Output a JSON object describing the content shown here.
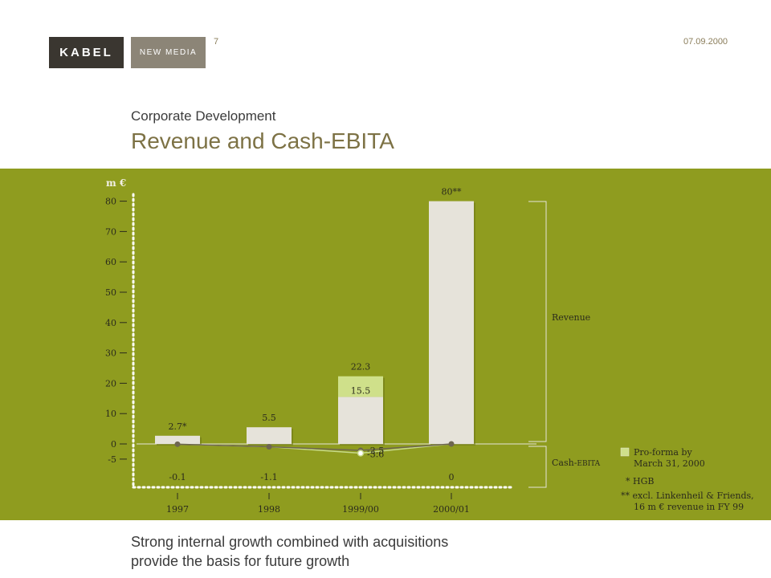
{
  "header": {
    "logo_left": "KABEL",
    "logo_right": "NEW MEDIA",
    "page_number": "7",
    "date": "07.09.2000"
  },
  "section": {
    "subtitle": "Corporate Development",
    "title": "Revenue and Cash-EBITA"
  },
  "footer": {
    "line1": "Strong internal growth combined with acquisitions",
    "line2": "provide the basis for future growth"
  },
  "colors": {
    "band": "#8f9c1f",
    "bar": "#e6e3da",
    "proforma": "#cfe08a",
    "ebita_line": "#6e6650",
    "proforma_line": "#c7d98a"
  },
  "chart_data": {
    "type": "bar",
    "unit_label": "m €",
    "ylim": [
      -5,
      80
    ],
    "yticks": [
      80,
      70,
      60,
      50,
      40,
      30,
      20,
      10,
      0,
      -5
    ],
    "categories": [
      "1997",
      "1998",
      "1999/00",
      "2000/01"
    ],
    "revenue": {
      "values": [
        2.7,
        5.5,
        15.5,
        80
      ],
      "labels": [
        "2.7*",
        "5.5",
        "15.5",
        "80**"
      ],
      "proforma_total": [
        null,
        null,
        22.3,
        null
      ],
      "proforma_label": [
        null,
        null,
        "22.3",
        null
      ]
    },
    "cash_ebita": {
      "values": [
        -0.1,
        -1.1,
        -2.5,
        0
      ],
      "labels": [
        "-0.1",
        "-1.1",
        "-2.5",
        "0"
      ],
      "proforma_value": -3.6,
      "proforma_label": "-3.6"
    },
    "brackets": {
      "revenue": "Revenue",
      "cash_ebita_main": "Cash-",
      "cash_ebita_small": "EBITA"
    },
    "legend": {
      "proforma_line1": "Pro-forma by",
      "proforma_line2": "March 31, 2000",
      "note1": "* HGB",
      "note2_line1": "** excl. Linkenheil & Friends,",
      "note2_line2": "16 m € revenue in FY 99"
    }
  }
}
